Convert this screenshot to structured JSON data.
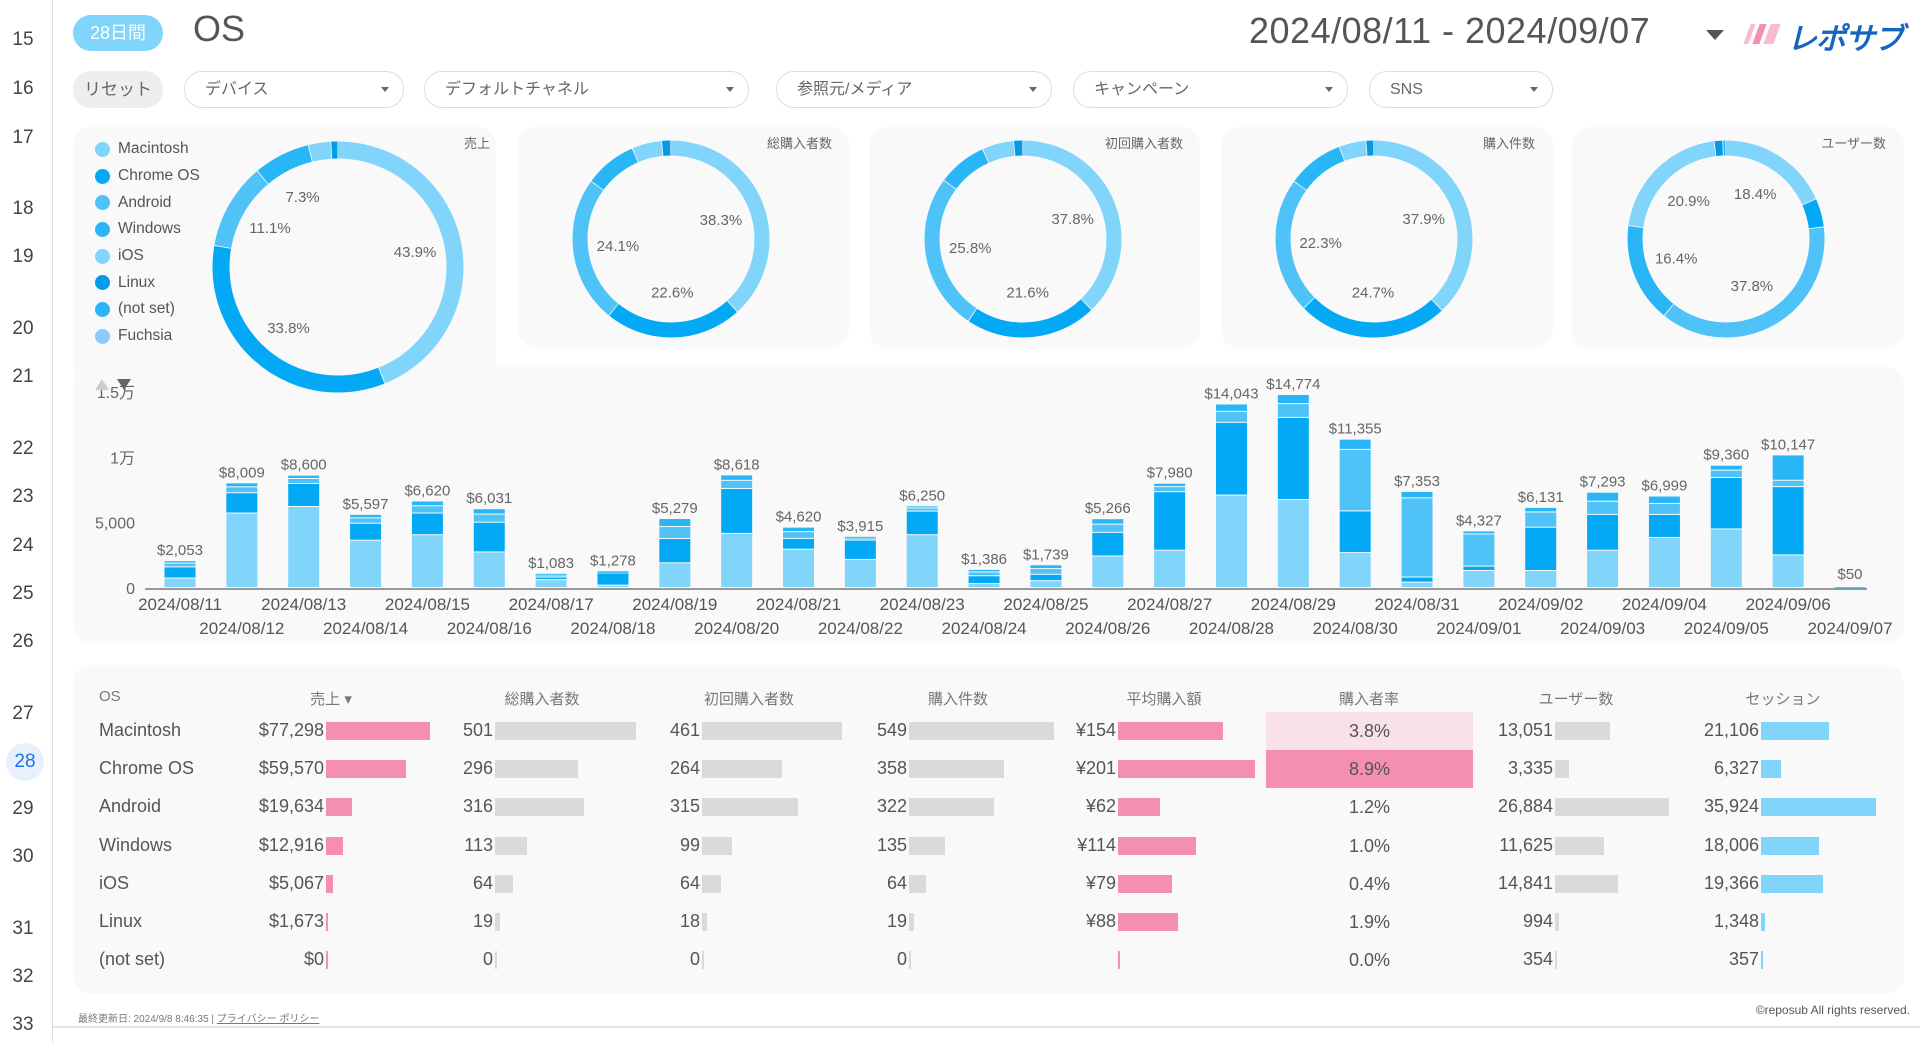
{
  "row_numbers": [
    "15",
    "16",
    "17",
    "18",
    "19",
    "20",
    "21",
    "22",
    "23",
    "24",
    "25",
    "26",
    "27",
    "28",
    "29",
    "30",
    "31",
    "32",
    "33"
  ],
  "active_row": "28",
  "header": {
    "period_badge": "28日間",
    "title": "OS",
    "date_range": "2024/08/11 - 2024/09/07",
    "logo_text": "レポサブ"
  },
  "filters": {
    "reset_label": "リセット",
    "items": [
      "デバイス",
      "デフォルトチャネル",
      "参照元/メディア",
      "キャンペーン",
      "SNS"
    ]
  },
  "colors": {
    "Macintosh": "#81D4FA",
    "Chrome OS": "#03A9F4",
    "Android": "#4FC3F7",
    "Windows": "#29B6F6",
    "iOS": "#81D4FA",
    "Linux": "#039BE5",
    "(not set)": "#29B6F6",
    "Fuchsia": "#90CAF9",
    "pink_bar": "#F48FB1",
    "gray_bar": "#DADADA",
    "session_bar": "#81D4FA",
    "highlight_light": "#F8E1EA",
    "highlight_strong": "#F48FB1"
  },
  "legend": [
    "Macintosh",
    "Chrome OS",
    "Android",
    "Windows",
    "iOS",
    "Linux",
    "(not set)",
    "Fuchsia"
  ],
  "donuts": [
    {
      "title": "売上",
      "slices": [
        "Macintosh",
        "Chrome OS",
        "Android",
        "Windows",
        "iOS",
        "Linux"
      ],
      "values": [
        43.9,
        33.8,
        11.1,
        7.3,
        2.9,
        0.9
      ],
      "labels": [
        "43.9%",
        "33.8%",
        "11.1%",
        "7.3%",
        "",
        ""
      ]
    },
    {
      "title": "総購入者数",
      "slices": [
        "Macintosh",
        "Chrome OS",
        "Android",
        "Windows",
        "iOS",
        "Linux"
      ],
      "values": [
        38.3,
        22.6,
        24.1,
        8.6,
        4.9,
        1.5
      ],
      "labels": [
        "38.3%",
        "22.6%",
        "24.1%",
        "",
        "",
        ""
      ]
    },
    {
      "title": "初回購入者数",
      "slices": [
        "Macintosh",
        "Chrome OS",
        "Android",
        "Windows",
        "iOS",
        "Linux"
      ],
      "values": [
        37.8,
        21.6,
        25.8,
        8.1,
        5.2,
        1.5
      ],
      "labels": [
        "37.8%",
        "21.6%",
        "25.8%",
        "",
        "",
        ""
      ]
    },
    {
      "title": "購入件数",
      "slices": [
        "Macintosh",
        "Chrome OS",
        "Android",
        "Windows",
        "iOS",
        "Linux"
      ],
      "values": [
        37.9,
        24.7,
        22.3,
        9.3,
        4.4,
        1.3
      ],
      "labels": [
        "37.9%",
        "24.7%",
        "22.3%",
        "",
        "",
        ""
      ]
    },
    {
      "title": "ユーザー数",
      "slices": [
        "Macintosh",
        "Chrome OS",
        "Android",
        "Windows",
        "iOS",
        "Linux",
        "(not set)"
      ],
      "values": [
        18.4,
        4.7,
        37.8,
        16.4,
        20.9,
        1.4,
        0.5
      ],
      "labels": [
        "18.4%",
        "",
        "37.8%",
        "16.4%",
        "20.9%",
        "",
        ""
      ]
    }
  ],
  "chart_data": {
    "type": "bar",
    "stacked": true,
    "categories": [
      "2024/08/11",
      "2024/08/12",
      "2024/08/13",
      "2024/08/14",
      "2024/08/15",
      "2024/08/16",
      "2024/08/17",
      "2024/08/18",
      "2024/08/19",
      "2024/08/20",
      "2024/08/21",
      "2024/08/22",
      "2024/08/23",
      "2024/08/24",
      "2024/08/25",
      "2024/08/26",
      "2024/08/27",
      "2024/08/28",
      "2024/08/29",
      "2024/08/30",
      "2024/08/31",
      "2024/09/01",
      "2024/09/02",
      "2024/09/03",
      "2024/09/04",
      "2024/09/05",
      "2024/09/06",
      "2024/09/07"
    ],
    "totals_labels": [
      "$2,053",
      "$8,009",
      "$8,600",
      "$5,597",
      "$6,620",
      "$6,031",
      "$1,083",
      "$1,278",
      "$5,279",
      "$8,618",
      "$4,620",
      "$3,915",
      "$6,250",
      "$1,386",
      "$1,739",
      "$5,266",
      "$7,980",
      "$14,043",
      "$14,774",
      "$11,355",
      "$7,353",
      "$4,327",
      "$6,131",
      "$7,293",
      "$6,999",
      "$9,360",
      "$10,147",
      "$50"
    ],
    "series": [
      {
        "name": "Macintosh",
        "values": [
          725,
          5700,
          6200,
          3620,
          4040,
          2720,
          600,
          180,
          1890,
          4140,
          2930,
          2150,
          4040,
          300,
          520,
          2410,
          2850,
          7070,
          6730,
          2670,
          410,
          1300,
          1300,
          2850,
          3830,
          4480,
          2490,
          0
        ]
      },
      {
        "name": "Chrome OS",
        "values": [
          855,
          1550,
          1760,
          1300,
          1660,
          2280,
          200,
          930,
          1860,
          3440,
          830,
          1480,
          1810,
          600,
          490,
          1810,
          4480,
          5570,
          6290,
          3190,
          390,
          340,
          3315,
          2745,
          1760,
          3940,
          5230,
          50
        ]
      },
      {
        "name": "Android",
        "values": [
          284,
          455,
          384,
          406,
          552,
          619,
          170,
          101,
          917,
          623,
          516,
          171,
          240,
          292,
          437,
          628,
          390,
          842,
          1052,
          4710,
          6060,
          2460,
          1165,
          1010,
          845,
          564,
          487,
          0
        ]
      },
      {
        "name": "Windows",
        "values": [
          189,
          304,
          256,
          271,
          368,
          412,
          113,
          67,
          612,
          415,
          344,
          114,
          160,
          194,
          292,
          418,
          260,
          561,
          702,
          785,
          493,
          227,
          351,
          688,
          564,
          376,
          1940,
          0
        ]
      }
    ],
    "y_ticks": [
      "0",
      "5,000",
      "1万",
      "1.5万"
    ],
    "y_tick_values": [
      0,
      5000,
      10000,
      15000
    ],
    "ylim": [
      0,
      15000
    ],
    "grid": false
  },
  "table": {
    "headers": [
      "OS",
      "売上",
      "総購入者数",
      "初回購入者数",
      "購入件数",
      "平均購入額",
      "購入者率",
      "ユーザー数",
      "セッション"
    ],
    "sort_indicator": "▾",
    "rows": [
      {
        "os": "Macintosh",
        "sales": "$77,298",
        "buyers": "501",
        "first": "461",
        "orders": "549",
        "avg": "¥154",
        "rate": "3.8%",
        "users": "13,051",
        "sessions": "21,106"
      },
      {
        "os": "Chrome OS",
        "sales": "$59,570",
        "buyers": "296",
        "first": "264",
        "orders": "358",
        "avg": "¥201",
        "rate": "8.9%",
        "users": "3,335",
        "sessions": "6,327"
      },
      {
        "os": "Android",
        "sales": "$19,634",
        "buyers": "316",
        "first": "315",
        "orders": "322",
        "avg": "¥62",
        "rate": "1.2%",
        "users": "26,884",
        "sessions": "35,924"
      },
      {
        "os": "Windows",
        "sales": "$12,916",
        "buyers": "113",
        "first": "99",
        "orders": "135",
        "avg": "¥114",
        "rate": "1.0%",
        "users": "11,625",
        "sessions": "18,006"
      },
      {
        "os": "iOS",
        "sales": "$5,067",
        "buyers": "64",
        "first": "64",
        "orders": "64",
        "avg": "¥79",
        "rate": "0.4%",
        "users": "14,841",
        "sessions": "19,366"
      },
      {
        "os": "Linux",
        "sales": "$1,673",
        "buyers": "19",
        "first": "18",
        "orders": "19",
        "avg": "¥88",
        "rate": "1.9%",
        "users": "994",
        "sessions": "1,348"
      },
      {
        "os": "(not set)",
        "sales": "$0",
        "buyers": "0",
        "first": "0",
        "orders": "0",
        "avg": "",
        "rate": "0.0%",
        "users": "354",
        "sessions": "357"
      }
    ]
  },
  "footer": {
    "updated": "最終更新日: 2024/9/8 8:46:35",
    "privacy": "プライバシー ポリシー",
    "copyright": "©reposub All rights reserved."
  }
}
